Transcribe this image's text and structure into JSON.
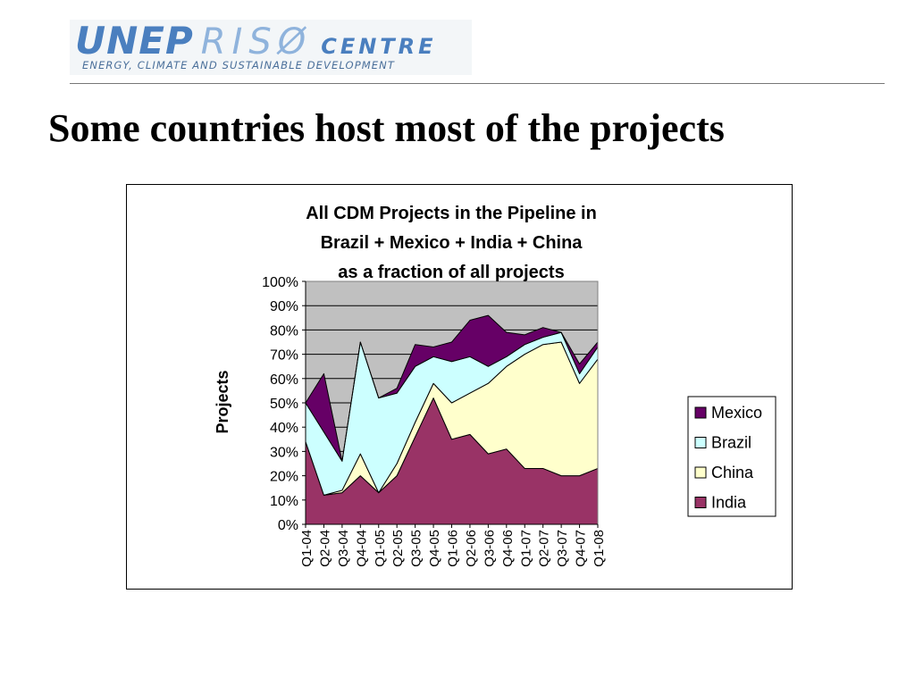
{
  "header": {
    "logo_unep": "UNEP",
    "logo_riso": "RISØ",
    "logo_centre": "CENTRE",
    "logo_tagline": "ENERGY, CLIMATE AND SUSTAINABLE DEVELOPMENT"
  },
  "slide": {
    "title": "Some countries host most of the projects"
  },
  "chart_data": {
    "type": "area",
    "stacked": true,
    "title_lines": [
      "All CDM Projects in the Pipeline in",
      "Brazil + Mexico + India + China",
      "as a fraction of all projects"
    ],
    "xlabel": "",
    "ylabel": "Projects",
    "categories": [
      "Q1-04",
      "Q2-04",
      "Q3-04",
      "Q4-04",
      "Q1-05",
      "Q2-05",
      "Q3-05",
      "Q4-05",
      "Q1-06",
      "Q2-06",
      "Q3-06",
      "Q4-06",
      "Q1-07",
      "Q2-07",
      "Q3-07",
      "Q4-07",
      "Q1-08"
    ],
    "yticks": [
      "0%",
      "10%",
      "20%",
      "30%",
      "40%",
      "50%",
      "60%",
      "70%",
      "80%",
      "90%",
      "100%"
    ],
    "ylim": [
      0,
      1
    ],
    "grid": true,
    "legend_position": "right",
    "series": [
      {
        "name": "India",
        "color": "#993366",
        "values": [
          0.34,
          0.12,
          0.13,
          0.2,
          0.13,
          0.2,
          0.36,
          0.52,
          0.35,
          0.37,
          0.29,
          0.31,
          0.23,
          0.23,
          0.2,
          0.2,
          0.23
        ]
      },
      {
        "name": "China",
        "color": "#ffffcc",
        "values": [
          0.0,
          0.0,
          0.01,
          0.09,
          0.0,
          0.05,
          0.06,
          0.06,
          0.15,
          0.17,
          0.29,
          0.34,
          0.47,
          0.51,
          0.55,
          0.38,
          0.45
        ]
      },
      {
        "name": "Brazil",
        "color": "#ccffff",
        "values": [
          0.16,
          0.26,
          0.12,
          0.46,
          0.39,
          0.29,
          0.23,
          0.11,
          0.17,
          0.15,
          0.07,
          0.04,
          0.04,
          0.03,
          0.04,
          0.04,
          0.05
        ]
      },
      {
        "name": "Mexico",
        "color": "#660066",
        "values": [
          0.0,
          0.24,
          0.0,
          0.0,
          0.0,
          0.02,
          0.09,
          0.04,
          0.08,
          0.15,
          0.21,
          0.1,
          0.04,
          0.04,
          0.0,
          0.04,
          0.02
        ]
      }
    ],
    "legend_order": [
      "Mexico",
      "Brazil",
      "China",
      "India"
    ],
    "plot_background": "#c0c0c0"
  }
}
